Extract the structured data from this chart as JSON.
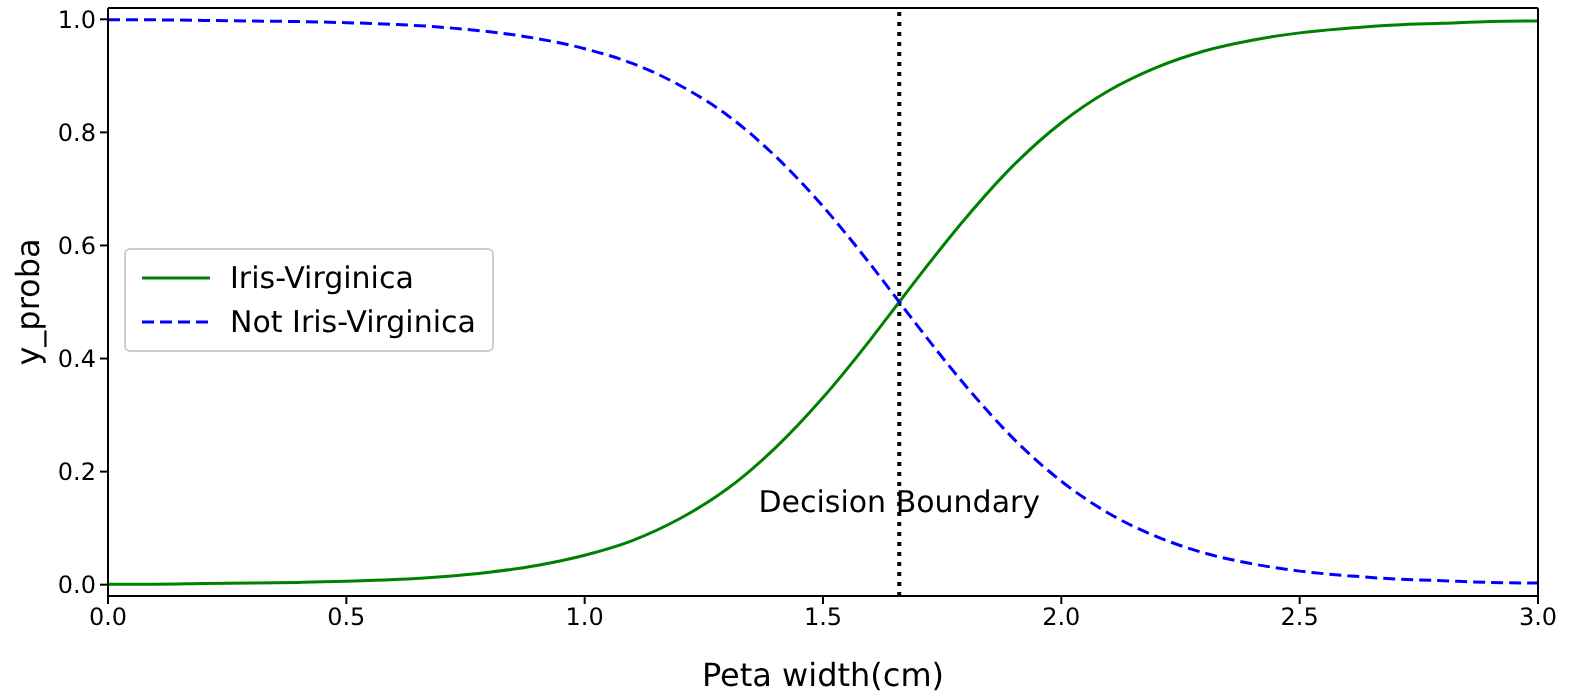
{
  "chart_data": {
    "type": "line",
    "xlabel": "Peta width(cm)",
    "ylabel": "y_proba",
    "x": [
      0,
      0.1,
      0.2,
      0.3,
      0.4,
      0.5,
      0.6,
      0.7,
      0.8,
      0.9,
      1.0,
      1.1,
      1.2,
      1.3,
      1.4,
      1.5,
      1.6,
      1.66,
      1.7,
      1.8,
      1.9,
      2.0,
      2.1,
      2.2,
      2.3,
      2.4,
      2.5,
      2.6,
      2.7,
      2.8,
      2.9,
      3.0
    ],
    "series": [
      {
        "name": "Iris-Virginica",
        "color": "#008000",
        "line_style": "solid",
        "values": [
          0.001,
          0.001,
          0.002,
          0.003,
          0.004,
          0.006,
          0.009,
          0.014,
          0.022,
          0.034,
          0.052,
          0.078,
          0.117,
          0.17,
          0.242,
          0.331,
          0.434,
          0.5,
          0.544,
          0.649,
          0.742,
          0.817,
          0.874,
          0.915,
          0.944,
          0.963,
          0.976,
          0.984,
          0.99,
          0.993,
          0.996,
          0.997
        ]
      },
      {
        "name": "Not Iris-Virginica",
        "color": "#0000ff",
        "line_style": "dashed",
        "values": [
          0.999,
          0.999,
          0.998,
          0.997,
          0.996,
          0.994,
          0.991,
          0.986,
          0.978,
          0.966,
          0.948,
          0.922,
          0.883,
          0.83,
          0.758,
          0.669,
          0.566,
          0.5,
          0.456,
          0.351,
          0.258,
          0.183,
          0.126,
          0.085,
          0.056,
          0.037,
          0.024,
          0.016,
          0.01,
          0.007,
          0.004,
          0.003
        ]
      }
    ],
    "xlim": [
      0,
      3.0
    ],
    "ylim": [
      -0.02,
      1.02
    ],
    "xticks": [
      {
        "value": 0,
        "label": "0.0"
      },
      0.5,
      {
        "value": 1,
        "label": "1.0"
      },
      1.5,
      {
        "value": 2,
        "label": "2.0"
      },
      2.5,
      {
        "value": 3,
        "label": "3.0"
      }
    ],
    "yticks": [
      {
        "value": 0,
        "label": "0.0"
      },
      0.2,
      0.4,
      0.6,
      0.8,
      {
        "value": 1,
        "label": "1.0"
      }
    ],
    "ref_lines": [
      {
        "axis": "x",
        "value": 1.66,
        "label": "Decision Boundary",
        "color": "#000000",
        "line_style": "dotted"
      }
    ],
    "grid": false,
    "legend": "left",
    "marker": "none"
  }
}
